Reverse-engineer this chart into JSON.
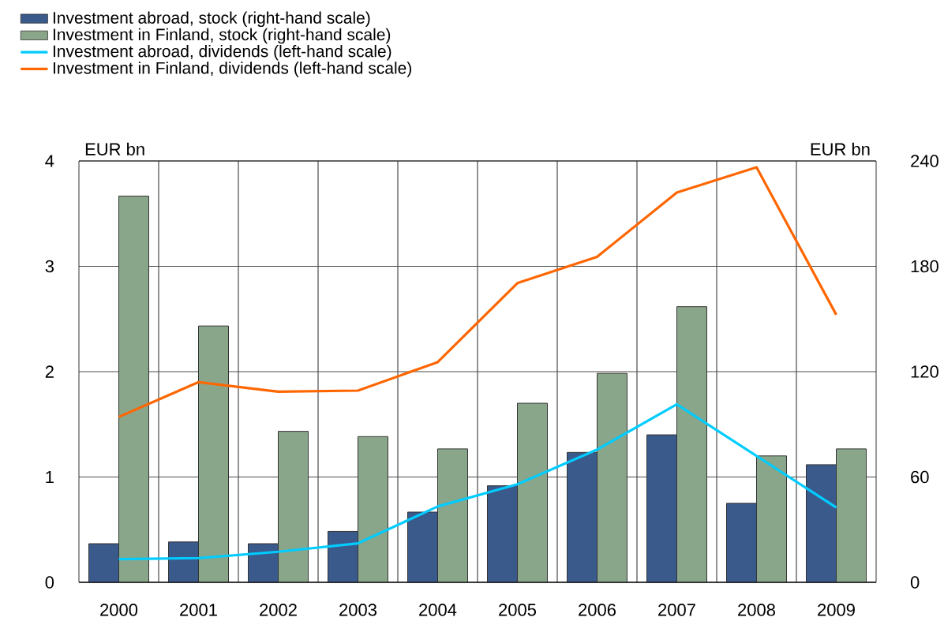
{
  "chart_data": {
    "type": "bar",
    "categories": [
      "2000",
      "2001",
      "2002",
      "2003",
      "2004",
      "2005",
      "2006",
      "2007",
      "2008",
      "2009"
    ],
    "series": [
      {
        "name": "Investment abroad, stock (right-hand scale)",
        "axis": "y2",
        "color": "#3a5a8c",
        "values": [
          22,
          23,
          22,
          29,
          40,
          55,
          74,
          84,
          45,
          67
        ]
      },
      {
        "name": "Investment in Finland, stock (right-hand scale)",
        "axis": "y2",
        "color": "#8aa68a",
        "values": [
          220,
          146,
          86,
          83,
          76,
          102,
          119,
          157,
          72,
          76
        ]
      },
      {
        "name": "Investment abroad, dividends (left-hand scale)",
        "type": "line",
        "color": "#00ccff",
        "values": [
          0.22,
          0.23,
          0.29,
          0.37,
          0.72,
          0.93,
          1.26,
          1.69,
          1.2,
          0.71
        ]
      },
      {
        "name": "Investment in Finland, dividends (left-hand scale)",
        "type": "line",
        "color": "#ff6600",
        "values": [
          1.57,
          1.9,
          1.81,
          1.82,
          2.09,
          2.84,
          3.09,
          3.7,
          3.94,
          2.54
        ]
      }
    ],
    "ylabel": "EUR bn",
    "y2label": "EUR bn",
    "ylim": [
      0,
      4
    ],
    "yticks": [
      0,
      1,
      2,
      3,
      4
    ],
    "y2lim": [
      0,
      240
    ],
    "y2ticks": [
      0,
      60,
      120,
      180,
      240
    ],
    "grid": true,
    "legend": "top left",
    "marker": "none",
    "line_style": "solid"
  }
}
